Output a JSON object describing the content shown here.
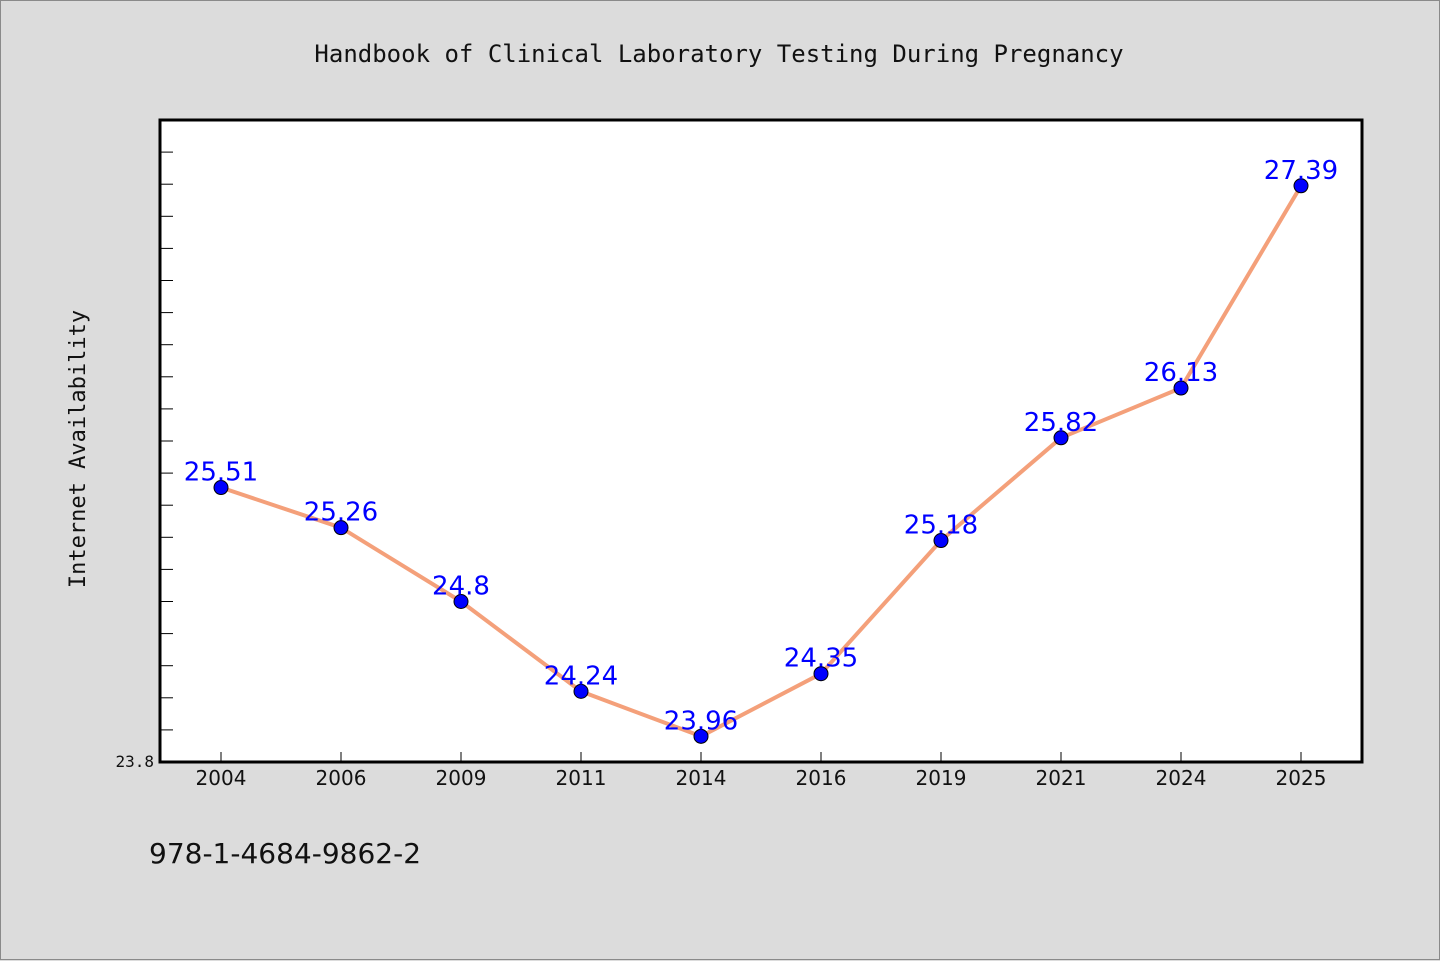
{
  "colors": {
    "background": "#dcdcdc",
    "plot_background": "#ffffff",
    "line": "#f4a07a",
    "marker": "#0000ff",
    "data_label": "#0000ff",
    "axis": "#000000"
  },
  "footer": {
    "isbn": "978-1-4684-9862-2"
  },
  "chart_data": {
    "type": "line",
    "title": "Handbook of Clinical Laboratory Testing During Pregnancy",
    "xlabel": "",
    "ylabel": "Internet Availability",
    "categories": [
      "2004",
      "2006",
      "2009",
      "2011",
      "2014",
      "2016",
      "2019",
      "2021",
      "2024",
      "2025"
    ],
    "series": [
      {
        "values": [
          25.51,
          25.26,
          24.8,
          24.24,
          23.96,
          24.35,
          25.18,
          25.82,
          26.13,
          27.39
        ]
      }
    ],
    "y_tick_labels": [
      "23.8"
    ],
    "ylim": [
      23.8,
      27.8
    ],
    "grid": false,
    "legend": "none",
    "marker": "circle"
  }
}
